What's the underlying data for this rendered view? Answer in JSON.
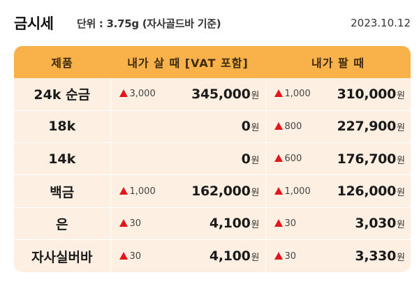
{
  "header": {
    "title": "금시세",
    "unit": "단위 : 3.75g (자사골드바 기준)",
    "date": "2023.10.12"
  },
  "table": {
    "columns": {
      "product": "제품",
      "buy": "내가 살 때 [VAT 포함]",
      "sell": "내가 팔 때"
    },
    "currency_unit": "원",
    "rows": [
      {
        "product": "24k 순금",
        "buy_change": "3,000",
        "buy_price": "345,000",
        "sell_change": "1,000",
        "sell_price": "310,000"
      },
      {
        "product": "18k",
        "buy_change": "",
        "buy_price": "0",
        "sell_change": "800",
        "sell_price": "227,900"
      },
      {
        "product": "14k",
        "buy_change": "",
        "buy_price": "0",
        "sell_change": "600",
        "sell_price": "176,700"
      },
      {
        "product": "백금",
        "buy_change": "1,000",
        "buy_price": "162,000",
        "sell_change": "1,000",
        "sell_price": "126,000"
      },
      {
        "product": "은",
        "buy_change": "30",
        "buy_price": "4,100",
        "sell_change": "30",
        "sell_price": "3,030"
      },
      {
        "product": "자사실버바",
        "buy_change": "30",
        "buy_price": "4,100",
        "sell_change": "30",
        "sell_price": "3,330"
      }
    ]
  },
  "colors": {
    "header_bg": "#f9b24a",
    "row_bg": "#fdf0e2",
    "increase": "#e3161b"
  },
  "icons": {
    "change_indicator": "up-triangle-icon"
  }
}
